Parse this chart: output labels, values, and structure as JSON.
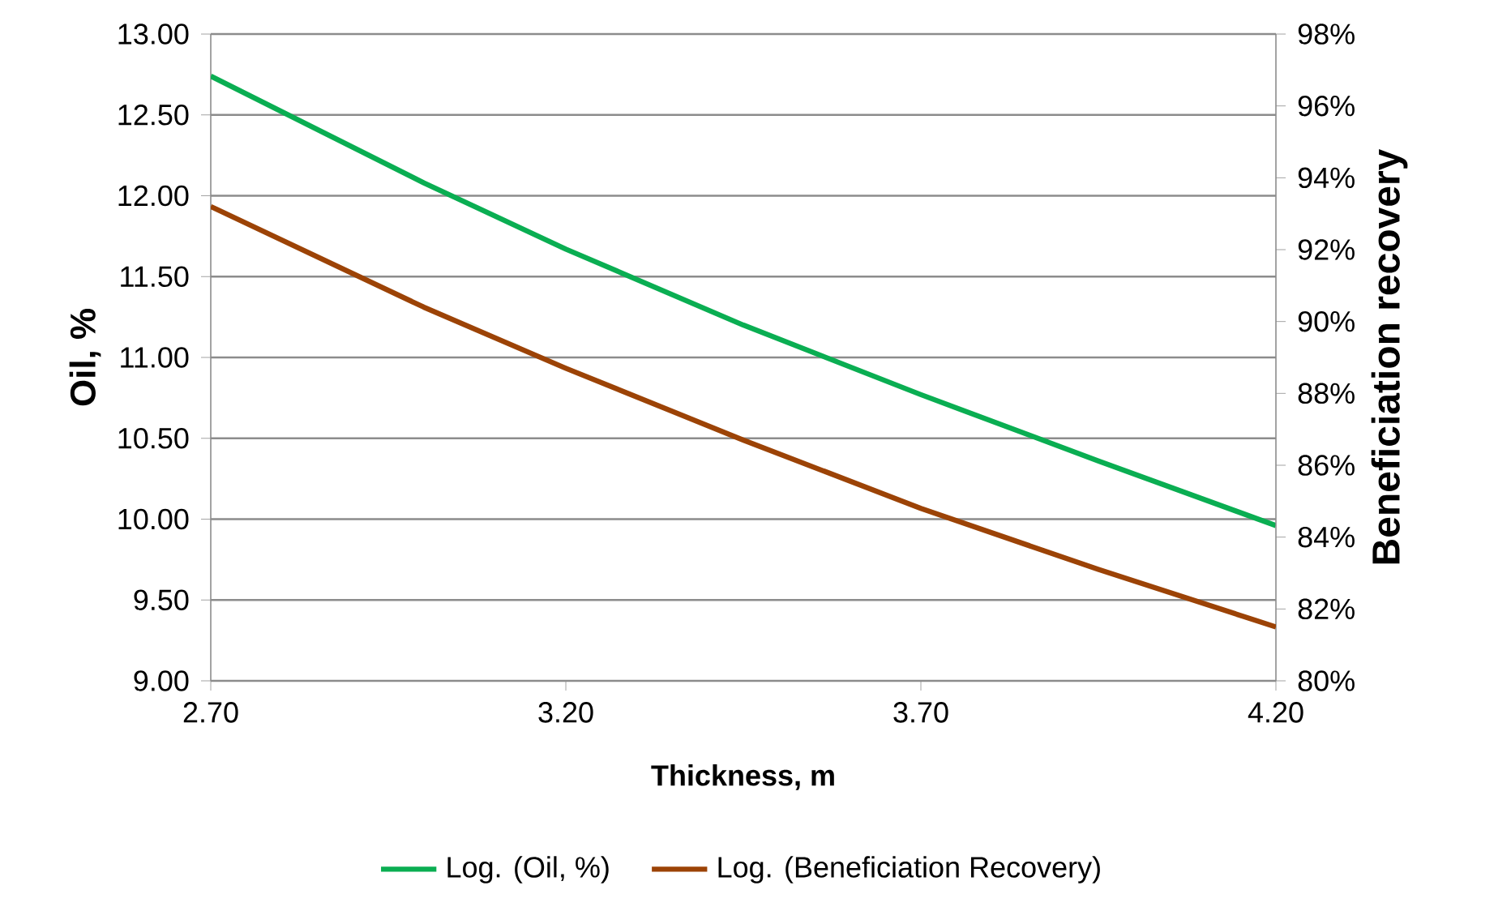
{
  "chart_data": {
    "type": "line",
    "xlabel": "Thickness, m",
    "ylabel": "Oil, %",
    "y2label": "Beneficiation recovery",
    "x": [
      2.7,
      3.0,
      3.2,
      3.45,
      3.7,
      3.95,
      4.2
    ],
    "series": [
      {
        "name": "Log. (Oil, %)",
        "color": "#0aae52",
        "values": [
          12.74,
          12.08,
          11.67,
          11.2,
          10.77,
          10.36,
          9.96
        ]
      },
      {
        "name": "Log. (Beneficiation Recovery)",
        "color": "#9c4306",
        "axis": "y2",
        "values": [
          93.2,
          90.4,
          88.7,
          86.7,
          84.8,
          83.1,
          81.5
        ]
      }
    ],
    "xlim": [
      2.7,
      4.2
    ],
    "xticks": [
      {
        "value": 2.7,
        "label": "2.70"
      },
      {
        "value": 3.2,
        "label": "3.20"
      },
      {
        "value": 3.7,
        "label": "3.70"
      },
      {
        "value": 4.2,
        "label": "4.20"
      }
    ],
    "ylim": [
      9,
      13
    ],
    "yticks": [
      {
        "value": 9,
        "label": "9.00"
      },
      {
        "value": 9.5,
        "label": "9.50"
      },
      {
        "value": 10,
        "label": "10.00"
      },
      {
        "value": 10.5,
        "label": "10.50"
      },
      {
        "value": 11,
        "label": "11.00"
      },
      {
        "value": 11.5,
        "label": "11.50"
      },
      {
        "value": 12,
        "label": "12.00"
      },
      {
        "value": 12.5,
        "label": "12.50"
      },
      {
        "value": 13,
        "label": "13.00"
      }
    ],
    "y2lim": [
      80,
      98
    ],
    "y2ticks": [
      {
        "value": 80,
        "label": "80%"
      },
      {
        "value": 82,
        "label": "82%"
      },
      {
        "value": 84,
        "label": "84%"
      },
      {
        "value": 86,
        "label": "86%"
      },
      {
        "value": 88,
        "label": "88%"
      },
      {
        "value": 90,
        "label": "90%"
      },
      {
        "value": 92,
        "label": "92%"
      },
      {
        "value": 94,
        "label": "94%"
      },
      {
        "value": 96,
        "label": "96%"
      },
      {
        "value": 98,
        "label": "98%"
      }
    ],
    "grid": "y",
    "legend": "bottom",
    "marker": "none",
    "line_style": "solid"
  }
}
